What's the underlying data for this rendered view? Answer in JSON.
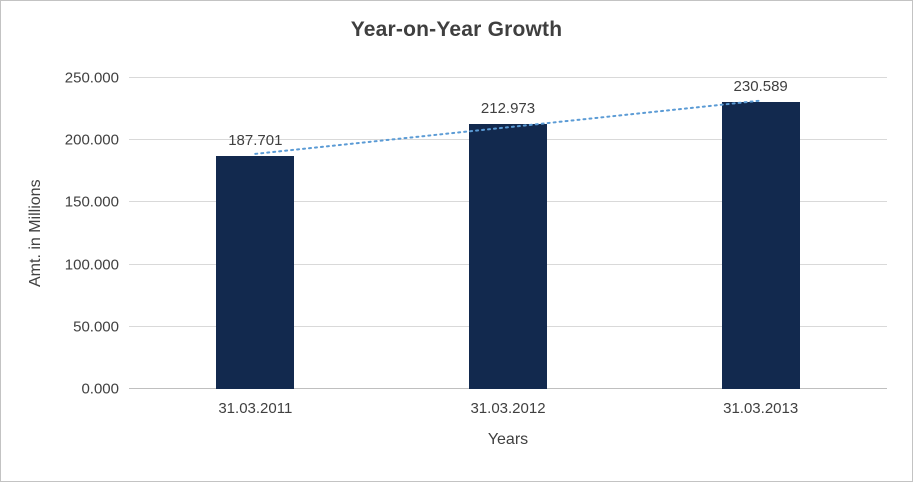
{
  "chart_data": {
    "type": "bar",
    "title": "Year-on-Year Growth",
    "xlabel": "Years",
    "ylabel": "Amt. in Millions",
    "categories": [
      "31.03.2011",
      "31.03.2012",
      "31.03.2013"
    ],
    "values": [
      187.701,
      212.973,
      230.589
    ],
    "value_labels": [
      "187.701",
      "212.973",
      "230.589"
    ],
    "ylim": [
      0,
      250
    ],
    "ytick_step": 50,
    "ytick_labels": [
      "0.000",
      "50.000",
      "100.000",
      "150.000",
      "200.000",
      "250.000"
    ],
    "grid": true,
    "legend": "none",
    "bar_color": "#12294e",
    "gridline_color": "#d9d9d9",
    "axis_color": "#bfbfbf",
    "text_color": "#404040",
    "trendline": {
      "type": "linear",
      "style": "dotted",
      "color": "#5b9bd5"
    }
  }
}
